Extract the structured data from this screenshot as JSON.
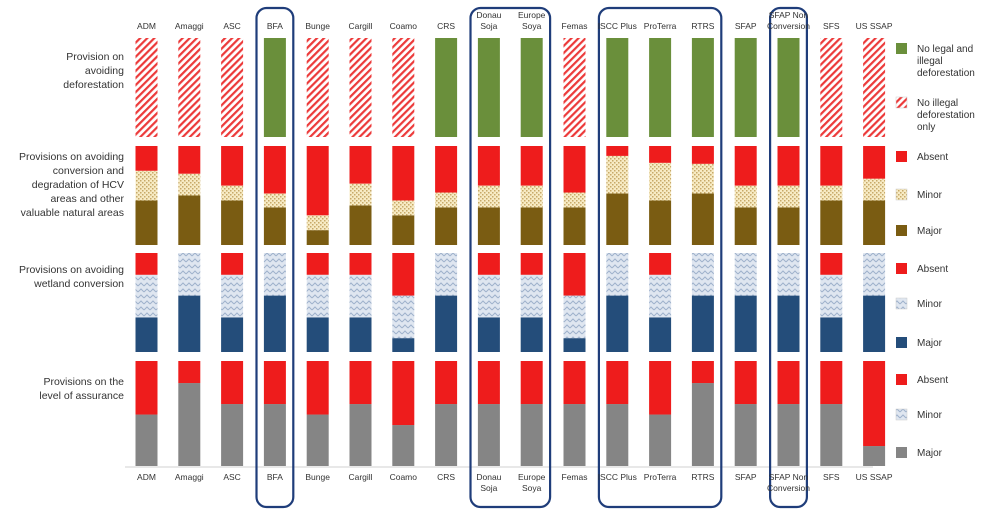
{
  "chart_data": {
    "type": "bar",
    "stacked": true,
    "categories": [
      "ADM",
      "Amaggi",
      "ASC",
      "BFA",
      "Bunge",
      "Cargill",
      "Coamo",
      "CRS",
      "Donau Soja",
      "Europe Soya",
      "Femas",
      "ISCC Plus",
      "ProTerra",
      "RTRS",
      "SFAP",
      "SFAP Non Conversion",
      "SFS",
      "US SSAP"
    ],
    "category_labels": [
      [
        "ADM"
      ],
      [
        "Amaggi"
      ],
      [
        "ASC"
      ],
      [
        "BFA"
      ],
      [
        "Bunge"
      ],
      [
        "Cargill"
      ],
      [
        "Coamo"
      ],
      [
        "CRS"
      ],
      [
        "Donau",
        "Soja"
      ],
      [
        "Europe",
        "Soya"
      ],
      [
        "Femas"
      ],
      [
        "ISCC Plus"
      ],
      [
        "ProTerra"
      ],
      [
        "RTRS"
      ],
      [
        "SFAP"
      ],
      [
        "SFAP Non",
        "Conversion"
      ],
      [
        "SFS"
      ],
      [
        "US SSAP"
      ]
    ],
    "highlighted_groups": [
      [
        "BFA"
      ],
      [
        "Donau Soja",
        "Europe Soya"
      ],
      [
        "ISCC Plus",
        "ProTerra",
        "RTRS"
      ],
      [
        "SFAP Non Conversion"
      ]
    ],
    "panels": [
      {
        "label": [
          "Provision on",
          "avoiding",
          "deforestation"
        ],
        "series": [
          {
            "name": "No illegal deforestation only",
            "legend_label": [
              "No illegal",
              "deforestation",
              "only"
            ],
            "color": "#e8a0a0",
            "pattern": "hatch",
            "values": [
              1,
              1,
              1,
              0,
              1,
              1,
              1,
              0,
              0,
              0,
              1,
              0,
              0,
              0,
              0,
              0,
              1,
              1
            ]
          },
          {
            "name": "No legal and illegal deforestation",
            "legend_label": [
              "No legal and",
              "illegal",
              "deforestation"
            ],
            "color": "#6a8f3b",
            "values": [
              0,
              0,
              0,
              1,
              0,
              0,
              0,
              1,
              1,
              1,
              0,
              1,
              1,
              1,
              1,
              1,
              0,
              0
            ]
          }
        ]
      },
      {
        "label": [
          "Provisions on avoiding",
          "conversion and",
          "degradation of HCV",
          "areas and other",
          "valuable natural areas"
        ],
        "series": [
          {
            "name": "Major",
            "legend_label": [
              "Major"
            ],
            "color": "#7a5c12",
            "values": [
              0.45,
              0.5,
              0.45,
              0.38,
              0.15,
              0.4,
              0.3,
              0.38,
              0.38,
              0.38,
              0.38,
              0.52,
              0.45,
              0.52,
              0.38,
              0.38,
              0.45,
              0.45
            ]
          },
          {
            "name": "Minor",
            "legend_label": [
              "Minor"
            ],
            "color": "#f0e0b0",
            "pattern": "dots",
            "values": [
              0.3,
              0.22,
              0.15,
              0.14,
              0.15,
              0.22,
              0.15,
              0.15,
              0.22,
              0.22,
              0.15,
              0.38,
              0.38,
              0.3,
              0.22,
              0.22,
              0.15,
              0.22
            ]
          },
          {
            "name": "Absent",
            "legend_label": [
              "Absent"
            ],
            "color": "#ee1c1c",
            "values": [
              0.25,
              0.28,
              0.4,
              0.48,
              0.7,
              0.38,
              0.55,
              0.47,
              0.4,
              0.4,
              0.47,
              0.1,
              0.17,
              0.18,
              0.4,
              0.4,
              0.4,
              0.33
            ]
          }
        ]
      },
      {
        "label": [
          "Provisions on avoiding",
          "wetland conversion"
        ],
        "series": [
          {
            "name": "Major",
            "legend_label": [
              "Major"
            ],
            "color": "#244d7a",
            "values": [
              0.35,
              0.57,
              0.35,
              0.57,
              0.35,
              0.35,
              0.14,
              0.57,
              0.35,
              0.35,
              0.14,
              0.57,
              0.35,
              0.57,
              0.57,
              0.57,
              0.35,
              0.57
            ]
          },
          {
            "name": "Minor",
            "legend_label": [
              "Minor"
            ],
            "color": "#c8d4e4",
            "pattern": "zigzag",
            "values": [
              0.43,
              0.43,
              0.43,
              0.43,
              0.43,
              0.43,
              0.43,
              0.43,
              0.43,
              0.43,
              0.43,
              0.43,
              0.43,
              0.43,
              0.43,
              0.43,
              0.43,
              0.43
            ]
          },
          {
            "name": "Absent",
            "legend_label": [
              "Absent"
            ],
            "color": "#ee1c1c",
            "values": [
              0.22,
              0,
              0.22,
              0,
              0.22,
              0.22,
              0.43,
              0,
              0.22,
              0.22,
              0.43,
              0,
              0.22,
              0,
              0,
              0,
              0.22,
              0
            ]
          }
        ]
      },
      {
        "label": [
          "Provisions on the",
          "level of assurance"
        ],
        "series": [
          {
            "name": "Major",
            "legend_label": [
              "Major"
            ],
            "color": "#858585",
            "values": [
              0.49,
              0.79,
              0.59,
              0.59,
              0.49,
              0.59,
              0.39,
              0.59,
              0.59,
              0.59,
              0.59,
              0.59,
              0.49,
              0.79,
              0.59,
              0.59,
              0.59,
              0.19
            ]
          },
          {
            "name": "Minor",
            "legend_label": [
              "Minor"
            ],
            "color": "#c8d4e4",
            "pattern": "zigzag",
            "values": [
              0,
              0,
              0,
              0,
              0,
              0,
              0,
              0,
              0,
              0,
              0,
              0,
              0,
              0,
              0,
              0,
              0,
              0
            ]
          },
          {
            "name": "Absent",
            "legend_label": [
              "Absent"
            ],
            "color": "#ee1c1c",
            "values": [
              0.51,
              0.21,
              0.41,
              0.41,
              0.51,
              0.41,
              0.61,
              0.41,
              0.41,
              0.41,
              0.41,
              0.41,
              0.51,
              0.21,
              0.41,
              0.41,
              0.41,
              0.81
            ]
          }
        ]
      }
    ]
  }
}
